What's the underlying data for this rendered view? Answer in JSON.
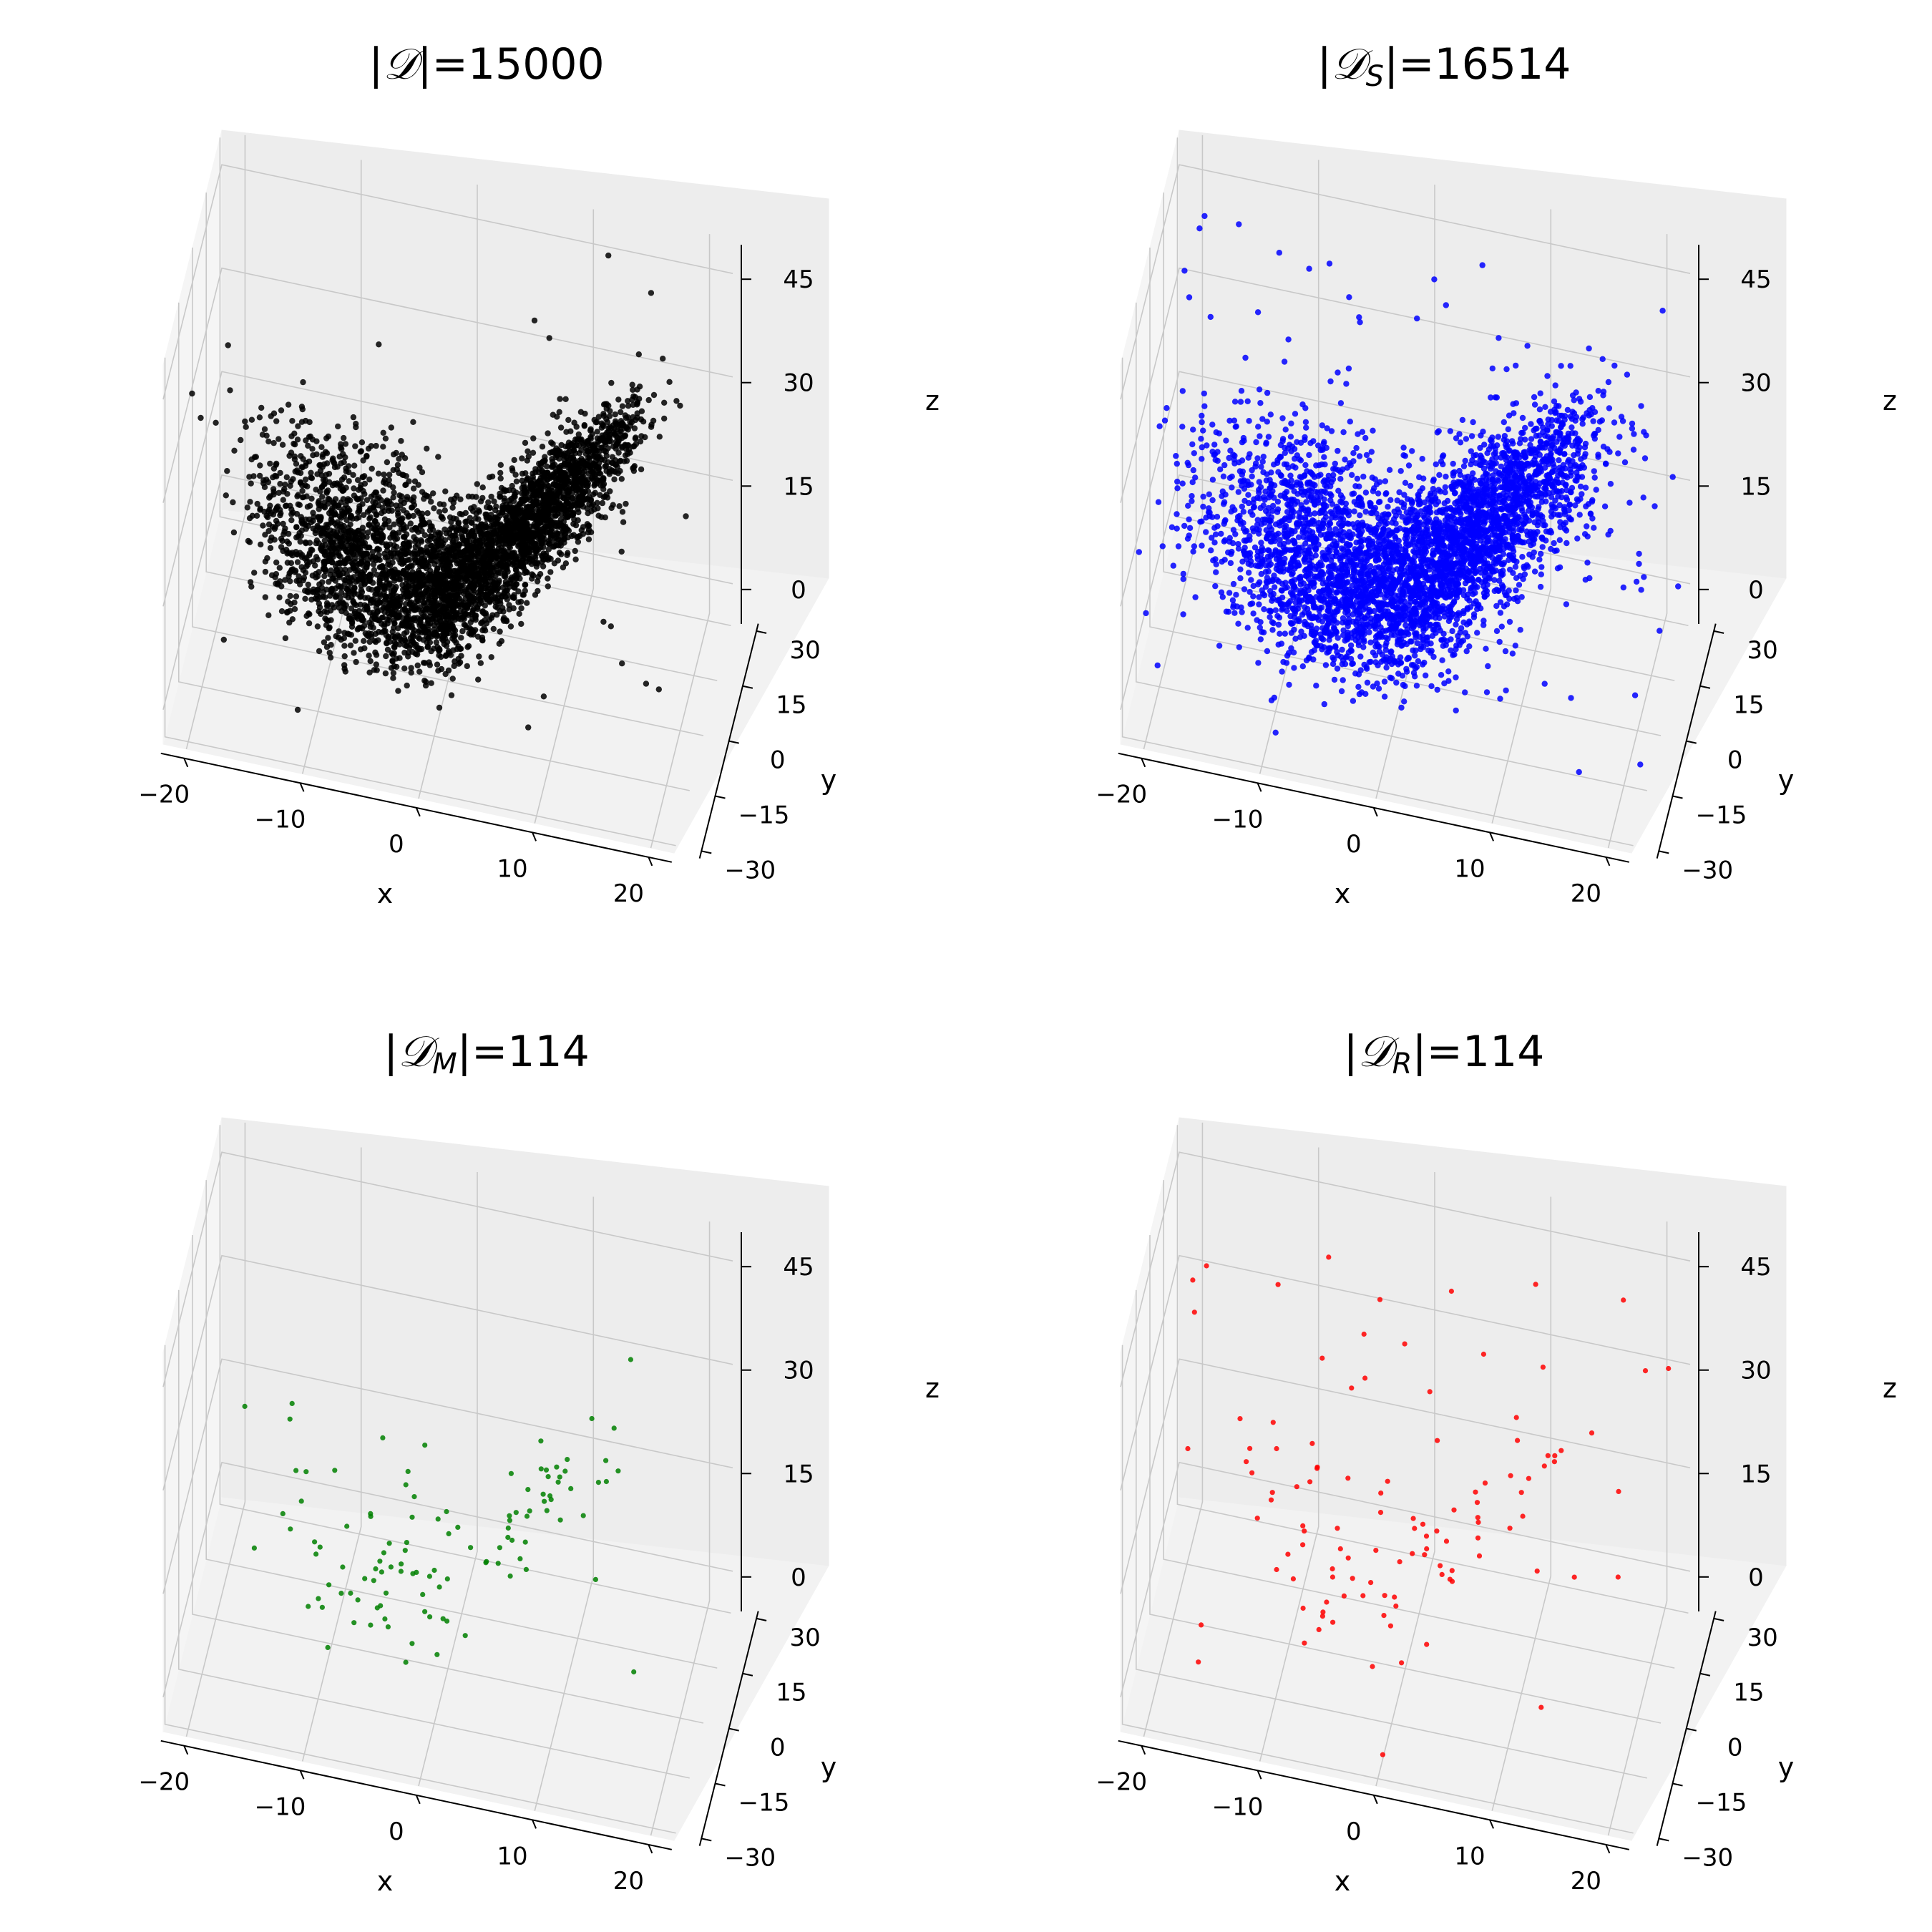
{
  "chart_data": [
    {
      "type": "scatter3d",
      "title": "|𝒟|=15000",
      "title_parts": {
        "set": "𝒟",
        "sub": "",
        "size": "15000"
      },
      "color": "#000000",
      "point_count_shown": 15000,
      "xlabel": "x",
      "ylabel": "y",
      "zlabel": "z",
      "xlim": [
        -22,
        22
      ],
      "ylim": [
        -32,
        32
      ],
      "zlim": [
        -5,
        50
      ],
      "xticks": [
        "−20",
        "−10",
        "0",
        "10",
        "20"
      ],
      "yticks": [
        "−30",
        "−15",
        "0",
        "15",
        "30"
      ],
      "zticks": [
        "0",
        "15",
        "30",
        "45"
      ],
      "grid": true,
      "distribution": "dense Lorenz-attractor-like cloud: broad dark lobe at left (x≈-15..5, z≈5..30), thin rising arm to right reaching z≈45 at x≈20, with sparse outliers"
    },
    {
      "type": "scatter3d",
      "title": "|𝒟S|=16514",
      "title_parts": {
        "set": "𝒟",
        "sub": "S",
        "size": "16514"
      },
      "color": "#0000ff",
      "point_count_shown": 16514,
      "xlabel": "x",
      "ylabel": "y",
      "zlabel": "z",
      "xlim": [
        -22,
        22
      ],
      "ylim": [
        -32,
        32
      ],
      "zlim": [
        -5,
        50
      ],
      "xticks": [
        "−20",
        "−10",
        "0",
        "10",
        "20"
      ],
      "yticks": [
        "−30",
        "−15",
        "0",
        "15",
        "30"
      ],
      "zticks": [
        "0",
        "15",
        "30",
        "45"
      ],
      "grid": true,
      "distribution": "same shape as the left panel but more spread out, with more outliers"
    },
    {
      "type": "scatter3d",
      "title": "|𝒟M|=114",
      "title_parts": {
        "set": "𝒟",
        "sub": "M",
        "size": "114"
      },
      "color": "#008000",
      "point_count_shown": 114,
      "xlabel": "x",
      "ylabel": "y",
      "zlabel": "z",
      "xlim": [
        -22,
        22
      ],
      "ylim": [
        -32,
        32
      ],
      "zlim": [
        -5,
        50
      ],
      "xticks": [
        "−20",
        "−10",
        "0",
        "10",
        "20"
      ],
      "yticks": [
        "−30",
        "−15",
        "0",
        "15",
        "30"
      ],
      "zticks": [
        "0",
        "15",
        "30",
        "45"
      ],
      "grid": true,
      "distribution": "sparse subset following the two-lobe shape"
    },
    {
      "type": "scatter3d",
      "title": "|𝒟R|=114",
      "title_parts": {
        "set": "𝒟",
        "sub": "R",
        "size": "114"
      },
      "color": "#ff0000",
      "point_count_shown": 114,
      "xlabel": "x",
      "ylabel": "y",
      "zlabel": "z",
      "xlim": [
        -22,
        22
      ],
      "ylim": [
        -32,
        32
      ],
      "zlim": [
        -5,
        50
      ],
      "xticks": [
        "−20",
        "−10",
        "0",
        "10",
        "20"
      ],
      "yticks": [
        "−30",
        "−15",
        "0",
        "15",
        "30"
      ],
      "zticks": [
        "0",
        "15",
        "30",
        "45"
      ],
      "grid": true,
      "distribution": "sparse subset spread widely across the whole volume"
    }
  ]
}
